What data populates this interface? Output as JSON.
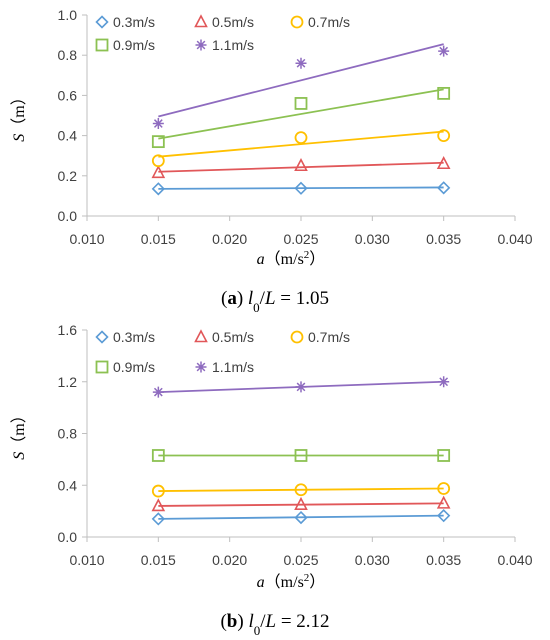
{
  "chart_data": [
    {
      "type": "scatter",
      "caption": {
        "open": "(",
        "letter": "a",
        "close": ")",
        "lhs_l": "l",
        "lhs_sub": "0",
        "slash": "/",
        "lhs_L": "L",
        "rhs": " = 1.05"
      },
      "xlabel": {
        "var": "a",
        "unit": "（m/s",
        "sup": "2",
        "unit_close": "）"
      },
      "ylabel": {
        "var": "S",
        "unit": "（m）"
      },
      "xlim": [
        0.01,
        0.04
      ],
      "ylim": [
        0.0,
        1.0
      ],
      "xticks": [
        "0.010",
        "0.015",
        "0.020",
        "0.025",
        "0.030",
        "0.035",
        "0.040"
      ],
      "yticks": [
        "0.0",
        "0.2",
        "0.4",
        "0.6",
        "0.8",
        "1.0"
      ],
      "legend_placement": "top",
      "series": [
        {
          "name": "0.3m/s",
          "color": "#5B9BD5",
          "marker": "diamond",
          "x": [
            0.015,
            0.025,
            0.035
          ],
          "y": [
            0.135,
            0.138,
            0.14
          ],
          "fit": [
            0.135,
            0.142
          ]
        },
        {
          "name": "0.5m/s",
          "color": "#E15759",
          "marker": "triangle",
          "x": [
            0.015,
            0.025,
            0.035
          ],
          "y": [
            0.215,
            0.25,
            0.26
          ],
          "fit": [
            0.22,
            0.265
          ]
        },
        {
          "name": "0.7m/s",
          "color": "#FFC000",
          "marker": "circle",
          "x": [
            0.015,
            0.025,
            0.035
          ],
          "y": [
            0.275,
            0.39,
            0.4
          ],
          "fit": [
            0.295,
            0.42
          ]
        },
        {
          "name": "0.9m/s",
          "color": "#8CC152",
          "marker": "square",
          "x": [
            0.015,
            0.025,
            0.035
          ],
          "y": [
            0.37,
            0.56,
            0.61
          ],
          "fit": [
            0.385,
            0.63
          ]
        },
        {
          "name": "1.1m/s",
          "color": "#8E6BBF",
          "marker": "asterisk",
          "x": [
            0.015,
            0.025,
            0.035
          ],
          "y": [
            0.46,
            0.76,
            0.82
          ],
          "fit": [
            0.495,
            0.855
          ]
        }
      ]
    },
    {
      "type": "scatter",
      "caption": {
        "open": "(",
        "letter": "b",
        "close": ")",
        "lhs_l": "l",
        "lhs_sub": "0",
        "slash": "/",
        "lhs_L": "L",
        "rhs": " = 2.12"
      },
      "xlabel": {
        "var": "a",
        "unit": "（m/s",
        "sup": "2",
        "unit_close": "）"
      },
      "ylabel": {
        "var": "S",
        "unit": "（m）"
      },
      "xlim": [
        0.01,
        0.04
      ],
      "ylim": [
        0.0,
        1.6
      ],
      "xticks": [
        "0.010",
        "0.015",
        "0.020",
        "0.025",
        "0.030",
        "0.035",
        "0.040"
      ],
      "yticks": [
        "0.0",
        "0.4",
        "0.8",
        "1.2",
        "1.6"
      ],
      "legend_placement": "top",
      "series": [
        {
          "name": "0.3m/s",
          "color": "#5B9BD5",
          "marker": "diamond",
          "x": [
            0.015,
            0.025,
            0.035
          ],
          "y": [
            0.14,
            0.15,
            0.165
          ],
          "fit": [
            0.14,
            0.165
          ]
        },
        {
          "name": "0.5m/s",
          "color": "#E15759",
          "marker": "triangle",
          "x": [
            0.015,
            0.025,
            0.035
          ],
          "y": [
            0.24,
            0.25,
            0.26
          ],
          "fit": [
            0.24,
            0.26
          ]
        },
        {
          "name": "0.7m/s",
          "color": "#FFC000",
          "marker": "circle",
          "x": [
            0.015,
            0.025,
            0.035
          ],
          "y": [
            0.355,
            0.365,
            0.375
          ],
          "fit": [
            0.355,
            0.375
          ]
        },
        {
          "name": "0.9m/s",
          "color": "#8CC152",
          "marker": "square",
          "x": [
            0.015,
            0.025,
            0.035
          ],
          "y": [
            0.63,
            0.63,
            0.63
          ],
          "fit": [
            0.63,
            0.63
          ]
        },
        {
          "name": "1.1m/s",
          "color": "#8E6BBF",
          "marker": "asterisk",
          "x": [
            0.015,
            0.025,
            0.035
          ],
          "y": [
            1.12,
            1.16,
            1.2
          ],
          "fit": [
            1.12,
            1.2
          ]
        }
      ]
    }
  ],
  "colors": {
    "axis": "#bfbfbf",
    "text": "#404040"
  }
}
